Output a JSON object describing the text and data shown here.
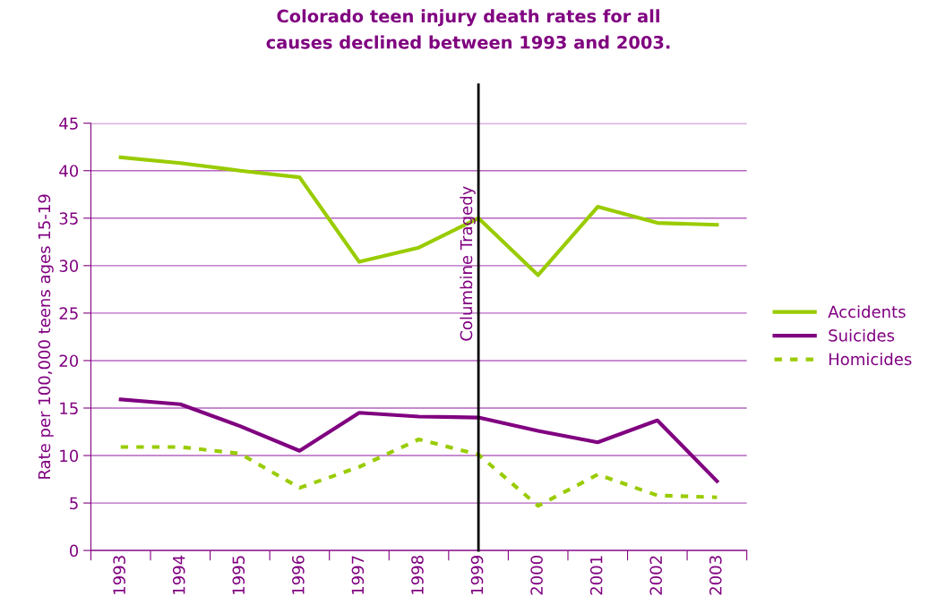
{
  "chart_data": {
    "type": "line",
    "title": "Colorado teen injury death rates for all\ncauses declined between 1993 and 2003.",
    "ylabel": "Rate per 100,000 teens ages 15-19",
    "categories": [
      "1993",
      "1994",
      "1995",
      "1996",
      "1997",
      "1998",
      "1999",
      "2000",
      "2001",
      "2002",
      "2003"
    ],
    "series": [
      {
        "name": "Accidents",
        "color": "#99cc00",
        "line_style": "solid",
        "values": [
          41.4,
          40.8,
          40.0,
          39.3,
          30.4,
          31.9,
          35.0,
          29.0,
          36.2,
          34.5,
          34.3
        ]
      },
      {
        "name": "Suicides",
        "color": "#800080",
        "line_style": "solid",
        "values": [
          15.9,
          15.4,
          13.1,
          10.5,
          14.5,
          14.1,
          14.0,
          12.6,
          11.4,
          13.7,
          7.3
        ]
      },
      {
        "name": "Homicides",
        "color": "#99cc00",
        "line_style": "dashed",
        "values": [
          10.9,
          10.9,
          10.2,
          6.6,
          8.8,
          11.7,
          10.1,
          4.7,
          8.0,
          5.8,
          5.6
        ]
      }
    ],
    "ylim": [
      0,
      45
    ],
    "yticks": [
      0,
      5,
      10,
      15,
      20,
      25,
      30,
      35,
      40,
      45
    ],
    "grid": "y",
    "legend": "right",
    "marker": "none",
    "ref_lines": [
      {
        "axis": "x",
        "value": "1999",
        "label": "Columbine Tragedy",
        "color": "#000000"
      }
    ]
  }
}
